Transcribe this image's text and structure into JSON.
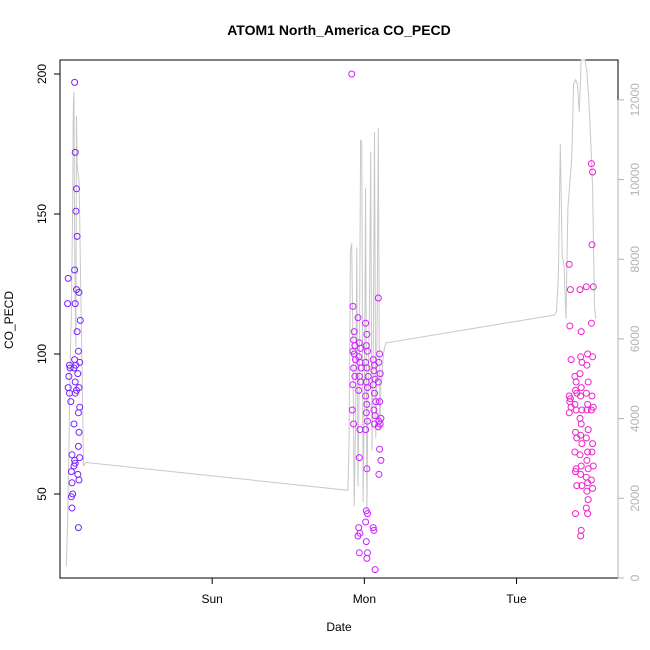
{
  "chart_data": {
    "type": "scatter",
    "title": "ATOM1 North_America CO_PECD",
    "xlabel": "Date",
    "ylabel": "CO_PECD",
    "x_unit": "hours since start of plot (Sat)",
    "xlim": [
      0,
      88
    ],
    "ylim": [
      20,
      205
    ],
    "ylim_right": [
      0,
      13000
    ],
    "x_ticks": [
      {
        "value": 24,
        "label": "Sun"
      },
      {
        "value": 48,
        "label": "Mon"
      },
      {
        "value": 72,
        "label": "Tue"
      }
    ],
    "y_ticks": [
      50,
      100,
      150,
      200
    ],
    "y_ticks_right": [
      0,
      2000,
      4000,
      6000,
      8000,
      10000,
      12000
    ],
    "colors": {
      "left_cluster": "#7b22ff",
      "mid_cluster": "#cc22ff",
      "right_cluster": "#ee22cc",
      "line": "#c8c8c8",
      "axis": "#000000",
      "right_axis": "#b4b4b4"
    },
    "series": [
      {
        "name": "CO_PECD points (left axis)",
        "axis": "left",
        "points": [
          [
            1.3,
            127
          ],
          [
            1.2,
            118
          ],
          [
            1.5,
            96
          ],
          [
            1.6,
            95
          ],
          [
            1.4,
            92
          ],
          [
            1.3,
            88
          ],
          [
            1.5,
            86
          ],
          [
            1.7,
            83
          ],
          [
            1.9,
            64
          ],
          [
            1.8,
            58
          ],
          [
            1.9,
            54
          ],
          [
            2.0,
            50
          ],
          [
            1.8,
            49
          ],
          [
            1.9,
            45
          ],
          [
            2.3,
            197
          ],
          [
            2.4,
            172
          ],
          [
            2.6,
            159
          ],
          [
            2.5,
            151
          ],
          [
            2.7,
            142
          ],
          [
            2.3,
            130
          ],
          [
            2.6,
            123
          ],
          [
            2.4,
            118
          ],
          [
            2.7,
            108
          ],
          [
            2.3,
            98
          ],
          [
            2.5,
            96
          ],
          [
            2.2,
            95
          ],
          [
            2.4,
            90
          ],
          [
            2.6,
            87
          ],
          [
            2.4,
            86
          ],
          [
            2.2,
            75
          ],
          [
            2.3,
            62
          ],
          [
            2.2,
            60
          ],
          [
            2.4,
            61
          ],
          [
            3.0,
            122
          ],
          [
            3.2,
            112
          ],
          [
            2.9,
            101
          ],
          [
            3.1,
            97
          ],
          [
            2.8,
            93
          ],
          [
            3.0,
            88
          ],
          [
            3.1,
            81
          ],
          [
            2.9,
            79
          ],
          [
            3.0,
            72
          ],
          [
            2.9,
            67
          ],
          [
            3.1,
            63
          ],
          [
            2.8,
            57
          ],
          [
            3.0,
            55
          ],
          [
            2.9,
            38
          ],
          [
            46.0,
            200
          ],
          [
            46.2,
            117
          ],
          [
            46.4,
            108
          ],
          [
            46.3,
            105
          ],
          [
            46.5,
            103
          ],
          [
            46.2,
            101
          ],
          [
            46.4,
            100
          ],
          [
            46.6,
            98
          ],
          [
            46.3,
            95
          ],
          [
            46.5,
            92
          ],
          [
            46.2,
            89
          ],
          [
            46.1,
            80
          ],
          [
            46.3,
            75
          ],
          [
            47.0,
            113
          ],
          [
            47.2,
            104
          ],
          [
            47.4,
            102
          ],
          [
            47.1,
            99
          ],
          [
            47.3,
            97
          ],
          [
            47.5,
            95
          ],
          [
            47.2,
            92
          ],
          [
            47.4,
            90
          ],
          [
            47.1,
            87
          ],
          [
            47.3,
            73
          ],
          [
            47.2,
            63
          ],
          [
            47.1,
            38
          ],
          [
            47.3,
            36
          ],
          [
            47.0,
            35
          ],
          [
            47.2,
            29
          ],
          [
            48.2,
            111
          ],
          [
            48.4,
            107
          ],
          [
            48.3,
            103
          ],
          [
            48.5,
            101
          ],
          [
            48.2,
            97
          ],
          [
            48.4,
            95
          ],
          [
            48.6,
            92
          ],
          [
            48.3,
            90
          ],
          [
            48.5,
            88
          ],
          [
            48.2,
            85
          ],
          [
            48.4,
            82
          ],
          [
            48.3,
            79
          ],
          [
            48.5,
            76
          ],
          [
            48.2,
            73
          ],
          [
            48.4,
            59
          ],
          [
            48.3,
            44
          ],
          [
            48.5,
            43
          ],
          [
            48.2,
            40
          ],
          [
            48.3,
            33
          ],
          [
            48.5,
            29
          ],
          [
            48.4,
            27
          ],
          [
            49.4,
            98
          ],
          [
            49.6,
            96
          ],
          [
            49.5,
            94
          ],
          [
            49.7,
            91
          ],
          [
            49.4,
            89
          ],
          [
            49.6,
            86
          ],
          [
            49.8,
            83
          ],
          [
            49.5,
            80
          ],
          [
            49.7,
            78
          ],
          [
            49.6,
            75
          ],
          [
            49.4,
            38
          ],
          [
            49.5,
            37
          ],
          [
            49.7,
            23
          ],
          [
            50.2,
            120
          ],
          [
            50.4,
            100
          ],
          [
            50.3,
            97
          ],
          [
            50.5,
            93
          ],
          [
            50.2,
            90
          ],
          [
            50.4,
            83
          ],
          [
            50.6,
            77
          ],
          [
            50.3,
            76
          ],
          [
            50.5,
            75
          ],
          [
            50.2,
            74
          ],
          [
            50.4,
            66
          ],
          [
            50.3,
            57
          ],
          [
            50.6,
            62
          ]
        ]
      },
      {
        "name": "CO_PECD points Tue (left axis)",
        "axis": "left",
        "points": [
          [
            80.3,
            132
          ],
          [
            80.5,
            123
          ],
          [
            80.4,
            110
          ],
          [
            80.6,
            98
          ],
          [
            80.3,
            85
          ],
          [
            80.5,
            84
          ],
          [
            80.4,
            83
          ],
          [
            80.6,
            81
          ],
          [
            80.3,
            79
          ],
          [
            81.2,
            92
          ],
          [
            81.4,
            90
          ],
          [
            81.3,
            87
          ],
          [
            81.5,
            86
          ],
          [
            81.2,
            82
          ],
          [
            81.4,
            80
          ],
          [
            81.3,
            72
          ],
          [
            81.5,
            70
          ],
          [
            81.2,
            65
          ],
          [
            81.4,
            59
          ],
          [
            81.3,
            58
          ],
          [
            81.5,
            53
          ],
          [
            81.3,
            43
          ],
          [
            82.0,
            123
          ],
          [
            82.2,
            108
          ],
          [
            82.1,
            99
          ],
          [
            82.3,
            97
          ],
          [
            82.0,
            93
          ],
          [
            82.2,
            88
          ],
          [
            82.1,
            85
          ],
          [
            82.3,
            80
          ],
          [
            82.0,
            77
          ],
          [
            82.2,
            75
          ],
          [
            82.1,
            71
          ],
          [
            82.3,
            68
          ],
          [
            82.0,
            64
          ],
          [
            82.2,
            60
          ],
          [
            82.1,
            57
          ],
          [
            82.3,
            53
          ],
          [
            82.2,
            37
          ],
          [
            82.1,
            35
          ],
          [
            83.0,
            124
          ],
          [
            83.2,
            100
          ],
          [
            83.1,
            96
          ],
          [
            83.3,
            90
          ],
          [
            83.0,
            86
          ],
          [
            83.2,
            82
          ],
          [
            83.1,
            80
          ],
          [
            83.3,
            73
          ],
          [
            83.0,
            70
          ],
          [
            83.2,
            65
          ],
          [
            83.1,
            62
          ],
          [
            83.3,
            59
          ],
          [
            83.0,
            56
          ],
          [
            83.2,
            54
          ],
          [
            83.1,
            51
          ],
          [
            83.3,
            48
          ],
          [
            83.0,
            45
          ],
          [
            83.2,
            43
          ],
          [
            83.8,
            168
          ],
          [
            84.0,
            165
          ],
          [
            83.9,
            139
          ],
          [
            84.1,
            124
          ],
          [
            83.8,
            111
          ],
          [
            84.0,
            99
          ],
          [
            83.9,
            85
          ],
          [
            84.1,
            81
          ],
          [
            83.8,
            80
          ],
          [
            84.0,
            68
          ],
          [
            83.9,
            65
          ],
          [
            84.1,
            60
          ],
          [
            83.8,
            55
          ],
          [
            84.0,
            52
          ]
        ]
      },
      {
        "name": "Model line (right axis)",
        "axis": "right",
        "x": [
          1.0,
          1.2,
          1.4,
          1.6,
          1.8,
          2.0,
          2.1,
          2.2,
          2.3,
          2.4,
          2.5,
          2.6,
          2.7,
          2.8,
          3.0,
          3.1,
          3.3,
          3.5,
          3.7,
          4.0,
          45.4,
          45.6,
          45.8,
          46.0,
          46.2,
          46.4,
          46.6,
          46.8,
          47.0,
          47.2,
          47.4,
          47.6,
          47.8,
          48.0,
          48.2,
          48.4,
          48.6,
          48.8,
          49.0,
          49.2,
          49.4,
          49.6,
          49.8,
          50.0,
          50.2,
          50.4,
          50.6,
          50.8,
          51.0,
          51.2,
          51.4,
          78.0,
          78.3,
          78.6,
          78.9,
          79.2,
          79.5,
          79.8,
          80.1,
          80.4,
          80.7,
          81.0,
          81.3,
          81.6,
          81.9,
          82.2,
          82.5,
          82.8,
          83.1,
          83.4,
          83.7,
          84.0,
          84.3,
          84.5
        ],
        "values": [
          300,
          1400,
          3200,
          5300,
          6700,
          9400,
          11800,
          12200,
          8500,
          6900,
          5800,
          11600,
          10400,
          10200,
          10000,
          9000,
          7000,
          5000,
          2800,
          2900,
          2200,
          3500,
          8200,
          8400,
          6000,
          1800,
          3800,
          8300,
          2300,
          5100,
          11000,
          10900,
          1900,
          4600,
          9800,
          1700,
          5000,
          6600,
          10700,
          3200,
          5400,
          11200,
          3500,
          6100,
          11300,
          3700,
          4800,
          5200,
          5600,
          5800,
          5900,
          6600,
          6700,
          7600,
          10900,
          8100,
          7800,
          6500,
          9300,
          9900,
          10500,
          12400,
          12500,
          12400,
          11700,
          13000,
          13000,
          13000,
          12700,
          12000,
          11000,
          9800,
          6800,
          6500
        ]
      }
    ]
  }
}
